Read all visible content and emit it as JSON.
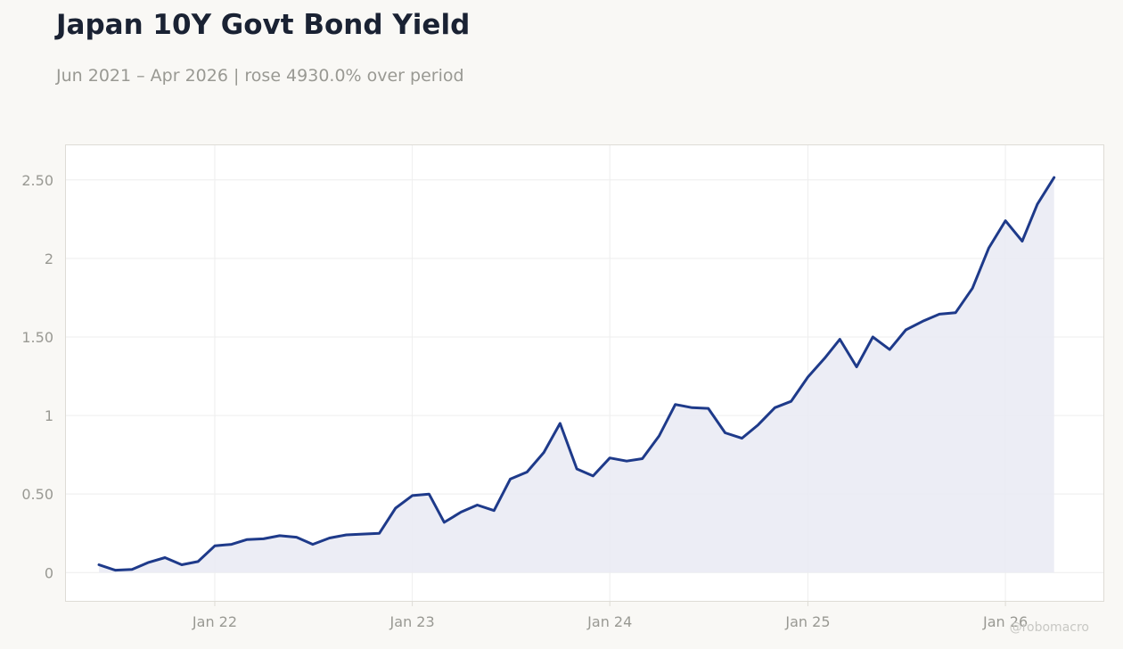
{
  "title": "Japan 10Y Govt Bond Yield",
  "subtitle": "Jun 2021 – Apr 2026 | rose 4930.0% over period",
  "watermark": "@robomacro",
  "colors": {
    "line": "#1e3a8a",
    "fill": "#e9eaf3",
    "grid": "#eeeeee",
    "frame": "#dedcd6"
  },
  "chart_data": {
    "type": "area",
    "title": "Japan 10Y Govt Bond Yield",
    "xlabel": "",
    "ylabel": "",
    "grid": true,
    "legend": "none",
    "xlim": [
      "2021-04-01",
      "2026-07-01"
    ],
    "ylim": [
      -0.18,
      2.72
    ],
    "x_ticks": [
      {
        "date": "2022-01-01",
        "label": "Jan 22"
      },
      {
        "date": "2023-01-01",
        "label": "Jan 23"
      },
      {
        "date": "2024-01-01",
        "label": "Jan 24"
      },
      {
        "date": "2025-01-01",
        "label": "Jan 25"
      },
      {
        "date": "2026-01-01",
        "label": "Jan 26"
      }
    ],
    "y_ticks": [
      {
        "value": 0,
        "label": "0"
      },
      {
        "value": 0.5,
        "label": "0.50"
      },
      {
        "value": 1,
        "label": "1"
      },
      {
        "value": 1.5,
        "label": "1.50"
      },
      {
        "value": 2,
        "label": "2"
      },
      {
        "value": 2.5,
        "label": "2.50"
      }
    ],
    "series": [
      {
        "x": [
          "2021-06",
          "2021-07",
          "2021-08",
          "2021-09",
          "2021-10",
          "2021-11",
          "2021-12",
          "2022-01",
          "2022-02",
          "2022-03",
          "2022-04",
          "2022-05",
          "2022-06",
          "2022-07",
          "2022-08",
          "2022-09",
          "2022-10",
          "2022-11",
          "2022-12",
          "2023-01",
          "2023-02",
          "2023-03",
          "2023-04",
          "2023-05",
          "2023-06",
          "2023-07",
          "2023-08",
          "2023-09",
          "2023-10",
          "2023-11",
          "2023-12",
          "2024-01",
          "2024-02",
          "2024-03",
          "2024-04",
          "2024-05",
          "2024-06",
          "2024-07",
          "2024-08",
          "2024-09",
          "2024-10",
          "2024-11",
          "2024-12",
          "2025-01",
          "2025-02",
          "2025-03",
          "2025-04",
          "2025-05",
          "2025-06",
          "2025-07",
          "2025-08",
          "2025-09",
          "2025-10",
          "2025-11",
          "2025-12",
          "2026-01",
          "2026-02",
          "2026-03",
          "2026-04"
        ],
        "values": [
          0.05,
          0.015,
          0.02,
          0.065,
          0.095,
          0.05,
          0.07,
          0.17,
          0.18,
          0.21,
          0.215,
          0.235,
          0.225,
          0.18,
          0.22,
          0.24,
          0.245,
          0.25,
          0.41,
          0.49,
          0.5,
          0.32,
          0.385,
          0.43,
          0.395,
          0.595,
          0.64,
          0.765,
          0.95,
          0.66,
          0.615,
          0.73,
          0.71,
          0.725,
          0.87,
          1.07,
          1.05,
          1.045,
          0.89,
          0.855,
          0.94,
          1.05,
          1.09,
          1.245,
          1.365,
          1.485,
          1.31,
          1.5,
          1.42,
          1.545,
          1.6,
          1.645,
          1.655,
          1.81,
          2.065,
          2.24,
          2.11,
          2.345,
          2.515
        ]
      }
    ]
  }
}
